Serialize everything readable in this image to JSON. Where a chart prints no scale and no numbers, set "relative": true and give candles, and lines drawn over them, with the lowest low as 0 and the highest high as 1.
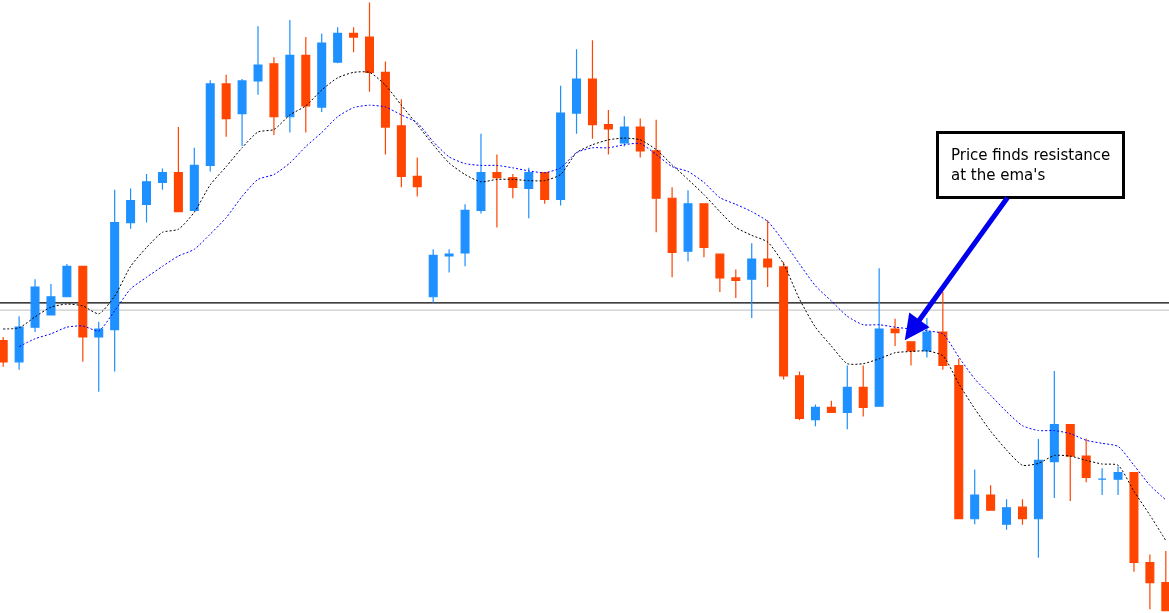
{
  "chart_data": {
    "type": "candlestick",
    "relative": true,
    "line_style": "dotted",
    "categories": [
      null,
      null,
      null,
      null,
      null,
      null,
      null,
      null,
      null,
      null,
      null,
      null,
      null,
      null,
      null,
      null,
      null,
      null,
      null,
      null,
      null,
      null,
      null,
      null,
      null,
      null,
      null,
      null,
      null,
      null,
      null,
      null,
      null,
      null,
      null,
      null,
      null,
      null,
      null,
      null,
      null,
      null,
      null,
      null,
      null,
      null,
      null,
      null,
      null,
      null,
      null,
      null,
      null,
      null,
      null,
      null,
      null,
      null,
      null,
      null,
      null,
      null,
      null,
      null,
      null,
      null,
      null,
      null,
      null,
      null,
      null,
      null,
      null,
      null
    ],
    "ohlc": [
      [
        0.444,
        0.45,
        0.401,
        0.409
      ],
      [
        0.409,
        0.484,
        0.396,
        0.466
      ],
      [
        0.466,
        0.545,
        0.458,
        0.532
      ],
      [
        0.486,
        0.537,
        0.486,
        0.516
      ],
      [
        0.516,
        0.57,
        0.516,
        0.566
      ],
      [
        0.566,
        0.566,
        0.409,
        0.45
      ],
      [
        0.45,
        0.475,
        0.36,
        0.463
      ],
      [
        0.462,
        0.692,
        0.393,
        0.638
      ],
      [
        0.638,
        0.694,
        0.628,
        0.674
      ],
      [
        0.668,
        0.718,
        0.638,
        0.705
      ],
      [
        0.704,
        0.727,
        0.692,
        0.72
      ],
      [
        0.72,
        0.795,
        0.656,
        0.656
      ],
      [
        0.658,
        0.761,
        0.658,
        0.732
      ],
      [
        0.732,
        0.872,
        0.722,
        0.866
      ],
      [
        0.866,
        0.881,
        0.779,
        0.809
      ],
      [
        0.817,
        0.874,
        0.764,
        0.871
      ],
      [
        0.871,
        0.961,
        0.848,
        0.897
      ],
      [
        0.899,
        0.91,
        0.782,
        0.812
      ],
      [
        0.812,
        0.971,
        0.786,
        0.913
      ],
      [
        0.913,
        0.943,
        0.786,
        0.83
      ],
      [
        0.828,
        0.949,
        0.82,
        0.933
      ],
      [
        0.902,
        0.959,
        0.9,
        0.949
      ],
      [
        0.949,
        0.959,
        0.918,
        0.943
      ],
      [
        0.943,
        1,
        0.853,
        0.885
      ],
      [
        0.885,
        0.903,
        0.75,
        0.795
      ],
      [
        0.797,
        0.841,
        0.696,
        0.714
      ],
      [
        0.714,
        0.745,
        0.681,
        0.697
      ],
      [
        0.516,
        0.594,
        0.506,
        0.584
      ],
      [
        0.583,
        0.594,
        0.556,
        0.586
      ],
      [
        0.588,
        0.668,
        0.566,
        0.658
      ],
      [
        0.658,
        0.784,
        0.653,
        0.72
      ],
      [
        0.72,
        0.75,
        0.63,
        0.712
      ],
      [
        0.712,
        0.718,
        0.678,
        0.696
      ],
      [
        0.694,
        0.728,
        0.645,
        0.72
      ],
      [
        0.72,
        0.72,
        0.669,
        0.676
      ],
      [
        0.676,
        0.863,
        0.666,
        0.818
      ],
      [
        0.818,
        0.923,
        0.784,
        0.874
      ],
      [
        0.874,
        0.938,
        0.776,
        0.799
      ],
      [
        0.799,
        0.823,
        0.75,
        0.792
      ],
      [
        0.769,
        0.813,
        0.763,
        0.795
      ],
      [
        0.795,
        0.809,
        0.745,
        0.756
      ],
      [
        0.756,
        0.807,
        0.622,
        0.678
      ],
      [
        0.678,
        0.696,
        0.548,
        0.589
      ],
      [
        0.591,
        0.691,
        0.574,
        0.669
      ],
      [
        0.669,
        0.669,
        0.581,
        0.597
      ],
      [
        0.586,
        0.586,
        0.524,
        0.547
      ],
      [
        0.547,
        0.561,
        0.514,
        0.543
      ],
      [
        0.545,
        0.604,
        0.481,
        0.578
      ],
      [
        0.578,
        0.642,
        0.532,
        0.565
      ],
      [
        0.565,
        0.573,
        0.38,
        0.386
      ],
      [
        0.386,
        0.393,
        0.313,
        0.316
      ],
      [
        0.314,
        0.339,
        0.303,
        0.334
      ],
      [
        0.334,
        0.345,
        0.326,
        0.326
      ],
      [
        0.326,
        0.403,
        0.298,
        0.367
      ],
      [
        0.367,
        0.403,
        0.319,
        0.334
      ],
      [
        0.336,
        0.563,
        0.336,
        0.463
      ],
      [
        0.463,
        0.48,
        0.435,
        0.457
      ],
      [
        0.442,
        0.442,
        0.403,
        0.427
      ],
      [
        0.427,
        0.481,
        0.416,
        0.458
      ],
      [
        0.458,
        0.524,
        0.396,
        0.403
      ],
      [
        0.403,
        0.414,
        0.151,
        0.151
      ],
      [
        0.151,
        0.232,
        0.142,
        0.19
      ],
      [
        0.19,
        0.206,
        0.164,
        0.165
      ],
      [
        0.142,
        0.183,
        0.133,
        0.169
      ],
      [
        0.17,
        0.183,
        0.141,
        0.151
      ],
      [
        0.151,
        0.282,
        0.087,
        0.247
      ],
      [
        0.245,
        0.394,
        0.185,
        0.306
      ],
      [
        0.306,
        0.306,
        0.18,
        0.254
      ],
      [
        0.254,
        0.283,
        0.211,
        0.219
      ],
      [
        0.216,
        0.234,
        0.19,
        0.216
      ],
      [
        0.216,
        0.237,
        0.19,
        0.227
      ],
      [
        0.227,
        0.227,
        0.064,
        0.079
      ],
      [
        0.079,
        0.092,
        0.002,
        0.046
      ],
      [
        0.046,
        0.098,
        0,
        0
      ]
    ],
    "colors": [
      "#ff4500",
      "#1e90ff",
      "#1e90ff",
      "#1e90ff",
      "#1e90ff",
      "#ff4500",
      "#1e90ff",
      "#1e90ff",
      "#1e90ff",
      "#1e90ff",
      "#1e90ff",
      "#ff4500",
      "#1e90ff",
      "#1e90ff",
      "#ff4500",
      "#1e90ff",
      "#1e90ff",
      "#ff4500",
      "#1e90ff",
      "#ff4500",
      "#1e90ff",
      "#1e90ff",
      "#ff4500",
      "#ff4500",
      "#ff4500",
      "#ff4500",
      "#ff4500",
      "#1e90ff",
      "#1e90ff",
      "#1e90ff",
      "#1e90ff",
      "#ff4500",
      "#ff4500",
      "#1e90ff",
      "#ff4500",
      "#1e90ff",
      "#1e90ff",
      "#ff4500",
      "#ff4500",
      "#1e90ff",
      "#ff4500",
      "#ff4500",
      "#ff4500",
      "#1e90ff",
      "#ff4500",
      "#ff4500",
      "#ff4500",
      "#1e90ff",
      "#ff4500",
      "#ff4500",
      "#ff4500",
      "#1e90ff",
      "#ff4500",
      "#1e90ff",
      "#ff4500",
      "#1e90ff",
      "#ff4500",
      "#ff4500",
      "#1e90ff",
      "#ff4500",
      "#ff4500",
      "#1e90ff",
      "#ff4500",
      "#1e90ff",
      "#ff4500",
      "#1e90ff",
      "#1e90ff",
      "#ff4500",
      "#ff4500",
      "#1e90ff",
      "#1e90ff",
      "#ff4500",
      "#ff4500",
      "#ff4500"
    ],
    "series": [
      {
        "type": "line",
        "color": "#000000",
        "values": [
          0.463,
          0.465,
          0.483,
          0.499,
          0.504,
          0.501,
          0.488,
          0.517,
          0.566,
          0.597,
          0.622,
          0.627,
          0.655,
          0.7,
          0.73,
          0.761,
          0.787,
          0.791,
          0.815,
          0.83,
          0.856,
          0.876,
          0.885,
          0.885,
          0.864,
          0.831,
          0.799,
          0.766,
          0.736,
          0.717,
          0.705,
          0.709,
          0.709,
          0.707,
          0.707,
          0.717,
          0.753,
          0.766,
          0.774,
          0.777,
          0.774,
          0.758,
          0.733,
          0.709,
          0.684,
          0.656,
          0.63,
          0.617,
          0.606,
          0.57,
          0.512,
          0.466,
          0.435,
          0.406,
          0.406,
          0.414,
          0.424,
          0.426,
          0.427,
          0.419,
          0.373,
          0.332,
          0.295,
          0.264,
          0.239,
          0.242,
          0.255,
          0.254,
          0.247,
          0.241,
          0.239,
          0.196,
          0.157,
          0.115
        ]
      },
      {
        "type": "line",
        "color": "#0000ff",
        "values": [
          null,
          0.434,
          0.447,
          0.455,
          0.466,
          0.468,
          0.46,
          0.493,
          0.529,
          0.548,
          0.566,
          0.583,
          0.594,
          0.619,
          0.646,
          0.681,
          0.709,
          0.717,
          0.736,
          0.763,
          0.786,
          0.812,
          0.827,
          0.831,
          0.828,
          0.815,
          0.802,
          0.771,
          0.746,
          0.735,
          0.732,
          0.732,
          0.728,
          0.723,
          0.72,
          0.728,
          0.753,
          0.761,
          0.761,
          0.766,
          0.768,
          0.75,
          0.73,
          0.722,
          0.704,
          0.679,
          0.668,
          0.656,
          0.64,
          0.607,
          0.57,
          0.534,
          0.509,
          0.484,
          0.47,
          0.47,
          0.466,
          0.463,
          0.46,
          0.455,
          0.417,
          0.381,
          0.354,
          0.327,
          0.304,
          0.296,
          0.296,
          0.291,
          0.28,
          0.275,
          0.27,
          0.239,
          0.206,
          0.182
        ]
      }
    ],
    "ref_lines": [
      {
        "axis": "y",
        "value": 0.506,
        "color": "#000000"
      },
      {
        "axis": "y",
        "value": 0.494,
        "color": "#cccccc"
      }
    ],
    "annotations": [
      "Price finds resistance\nat the ema's"
    ]
  }
}
